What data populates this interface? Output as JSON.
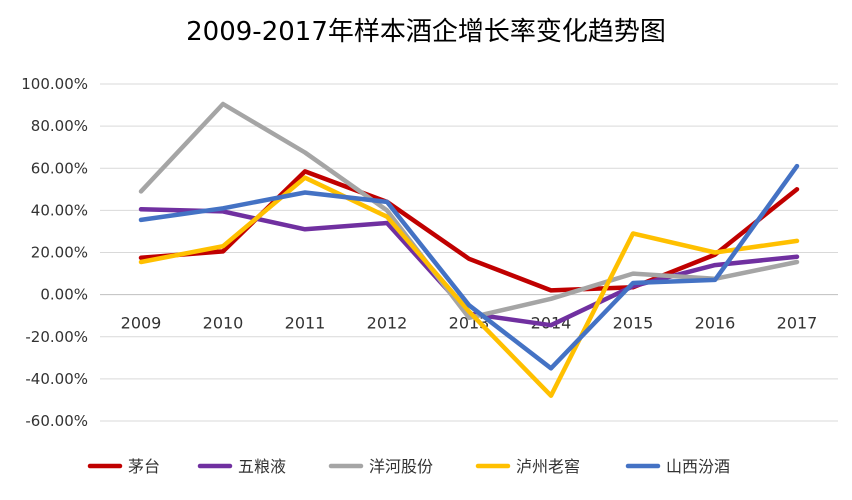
{
  "chart_data": {
    "type": "line",
    "title": "2009-2017年样本酒企增长率变化趋势图",
    "xlabel": "",
    "ylabel": "",
    "categories": [
      "2009",
      "2010",
      "2011",
      "2012",
      "2013",
      "2014",
      "2015",
      "2016",
      "2017"
    ],
    "ylim": [
      -60,
      100
    ],
    "yticks": [
      100,
      80,
      60,
      40,
      20,
      0,
      -20,
      -40,
      -60
    ],
    "ytick_labels": [
      "100.00%",
      "80.00%",
      "60.00%",
      "40.00%",
      "20.00%",
      "0.00%",
      "-20.00%",
      "-40.00%",
      "-60.00%"
    ],
    "grid": true,
    "legend_position": "bottom",
    "series": [
      {
        "name": "茅台",
        "color": "#C00000",
        "values": [
          17.5,
          20.5,
          58.5,
          44,
          17,
          2,
          3.5,
          19,
          50
        ]
      },
      {
        "name": "五粮液",
        "color": "#7030A0",
        "values": [
          40.5,
          39.5,
          31,
          34,
          -9,
          -14.5,
          4,
          14,
          18
        ]
      },
      {
        "name": "洋河股份",
        "color": "#A5A5A5",
        "values": [
          49,
          90.5,
          67.5,
          40,
          -11,
          -2,
          10,
          7.5,
          15.5
        ]
      },
      {
        "name": "泸州老窖",
        "color": "#FFC000",
        "values": [
          15.5,
          23,
          55.5,
          37,
          -8,
          -48,
          29,
          20,
          25.5
        ]
      },
      {
        "name": "山西汾酒",
        "color": "#4472C4",
        "values": [
          35.5,
          41,
          48.5,
          44,
          -5,
          -35,
          5.5,
          7,
          61
        ]
      }
    ]
  }
}
